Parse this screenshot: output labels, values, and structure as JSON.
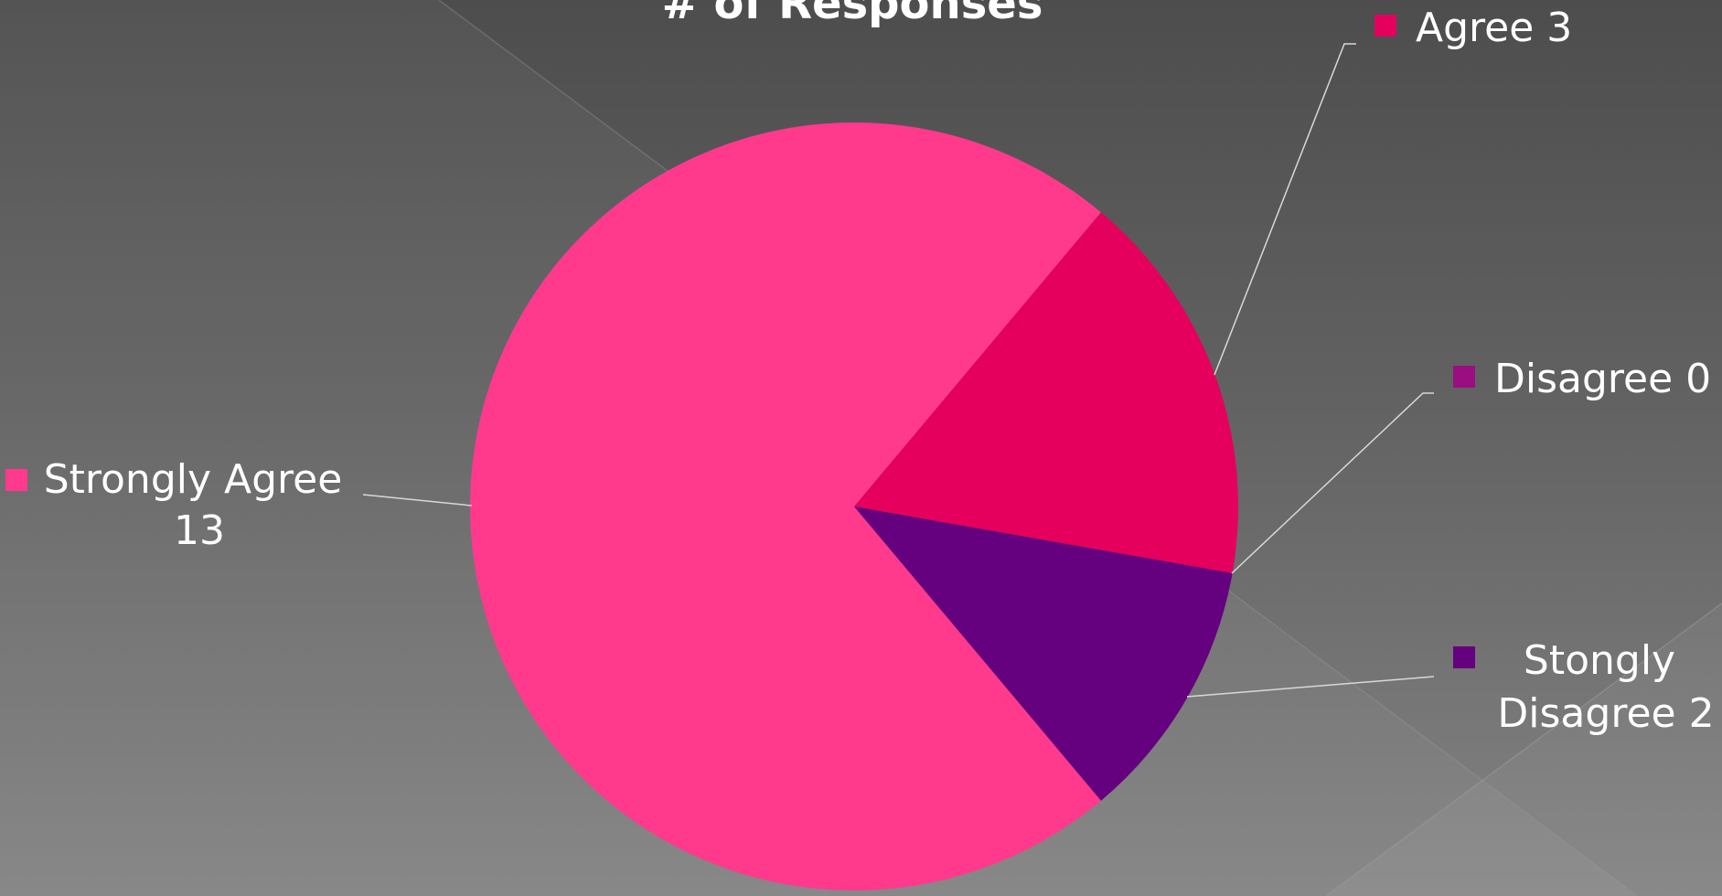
{
  "chart_data": {
    "type": "pie",
    "title": "# of Responses",
    "categories": [
      "Strongly Agree",
      "Agree",
      "Disagree",
      "Stongly Disagree"
    ],
    "values": [
      13,
      3,
      0,
      2
    ],
    "labels": [
      "Strongly Agree 13",
      "Agree 3",
      "Disagree 0",
      "Stongly Disagree 2"
    ],
    "colors": [
      "#ff3a8c",
      "#e4005c",
      "#9a0e82",
      "#65007e"
    ],
    "legend": "per-slice callout labels with color markers, leader lines to slices"
  },
  "background": {
    "colors": [
      "#4d4d4d",
      "#838383"
    ]
  }
}
